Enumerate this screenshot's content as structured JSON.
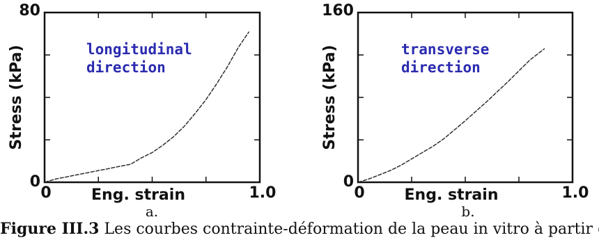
{
  "chart_data": [
    {
      "type": "line",
      "panel_label": "a.",
      "annotation": [
        "longitudinal",
        "direction"
      ],
      "xlabel": "Eng. strain",
      "ylabel": "Stress (kPa)",
      "x_tick_labels": [
        "0",
        "1.0"
      ],
      "y_tick_labels": [
        "0",
        "80"
      ],
      "xlim": [
        0,
        1.0
      ],
      "ylim": [
        0,
        80
      ],
      "series": [
        {
          "x": [
            0,
            0.05,
            0.1,
            0.15,
            0.2,
            0.25,
            0.3,
            0.35,
            0.4,
            0.45,
            0.5,
            0.55,
            0.6,
            0.65,
            0.7,
            0.75,
            0.8,
            0.85,
            0.9,
            0.95
          ],
          "y": [
            0,
            1.5,
            2.5,
            3.5,
            4.5,
            5.5,
            6.5,
            7.5,
            8.5,
            11.5,
            14,
            17.5,
            21.5,
            26.5,
            32.5,
            39,
            46.5,
            54.5,
            63.5,
            71
          ]
        }
      ]
    },
    {
      "type": "line",
      "panel_label": "b.",
      "annotation": [
        "transverse",
        "direction"
      ],
      "xlabel": "Eng. strain",
      "ylabel": "Stress (kPa)",
      "x_tick_labels": [
        "0",
        "1.0"
      ],
      "y_tick_labels": [
        "0",
        "160"
      ],
      "xlim": [
        0,
        1.0
      ],
      "ylim": [
        0,
        160
      ],
      "series": [
        {
          "x": [
            0,
            0.05,
            0.1,
            0.15,
            0.2,
            0.25,
            0.3,
            0.35,
            0.4,
            0.5,
            0.6,
            0.7,
            0.8,
            0.87
          ],
          "y": [
            0,
            3,
            7,
            11,
            16,
            22,
            28,
            34,
            41,
            58,
            76,
            95,
            115,
            126
          ]
        }
      ]
    }
  ],
  "caption": {
    "prefix": "Figure III.3",
    "text": " Les courbes contrainte-déformation de la peau in vitro à partir d’essais"
  }
}
